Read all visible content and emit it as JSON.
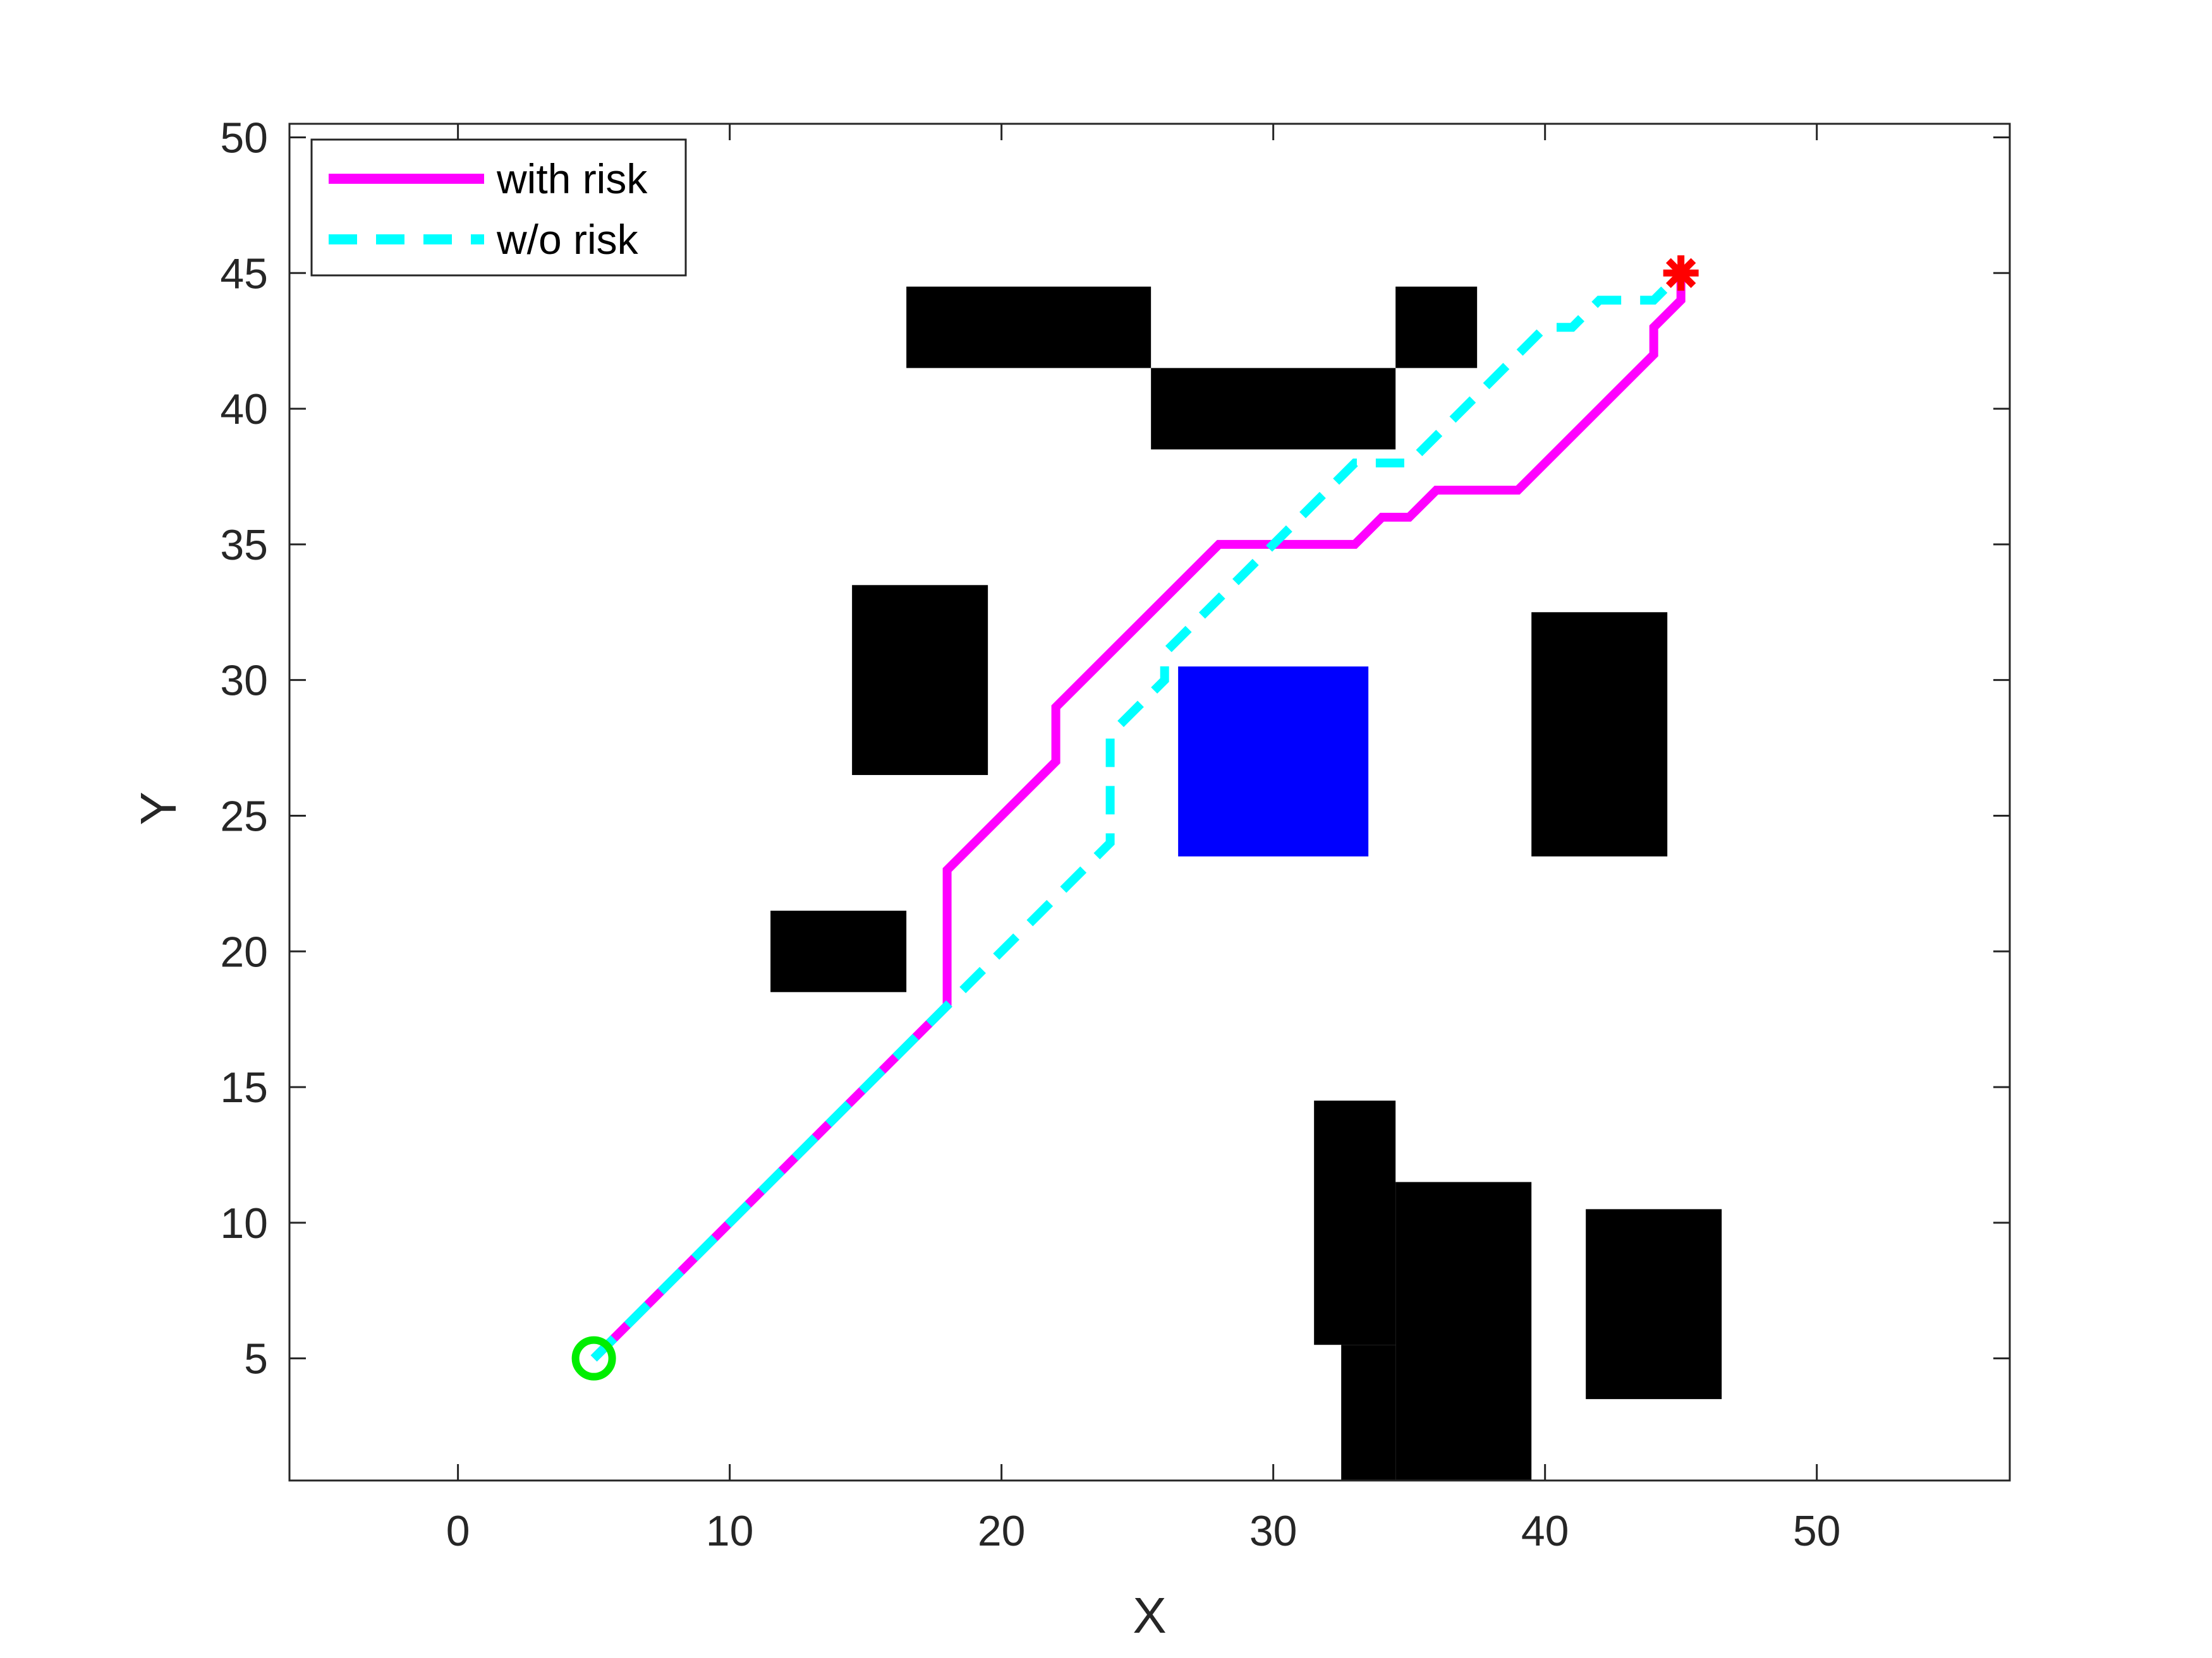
{
  "chart_data": {
    "type": "line",
    "xlabel": "X",
    "ylabel": "Y",
    "xlim": [
      -6.2,
      57.1
    ],
    "ylim": [
      0.5,
      50.5
    ],
    "xticks": [
      0,
      10,
      20,
      30,
      40,
      50
    ],
    "yticks": [
      5,
      10,
      15,
      20,
      25,
      30,
      35,
      40,
      45,
      50
    ],
    "grid": false,
    "legend_position": "top-left",
    "legend": {
      "with_risk": "with risk",
      "wo_risk": "w/o risk"
    },
    "series": [
      {
        "key": "with_risk",
        "name": "with risk",
        "color": "#ff00ff",
        "style": "solid",
        "points": [
          [
            5,
            5
          ],
          [
            18,
            18
          ],
          [
            18,
            23
          ],
          [
            22,
            27
          ],
          [
            22,
            29
          ],
          [
            28,
            35
          ],
          [
            33,
            35
          ],
          [
            34,
            36
          ],
          [
            35,
            36
          ],
          [
            36,
            37
          ],
          [
            39,
            37
          ],
          [
            44,
            42
          ],
          [
            44,
            43
          ],
          [
            45,
            44
          ],
          [
            45,
            45
          ]
        ]
      },
      {
        "key": "wo_risk",
        "name": "w/o risk",
        "color": "#00ffff",
        "style": "dashed",
        "points": [
          [
            5,
            5
          ],
          [
            18,
            18
          ],
          [
            24,
            24
          ],
          [
            24,
            28
          ],
          [
            26,
            30
          ],
          [
            26,
            31
          ],
          [
            33,
            38
          ],
          [
            35,
            38
          ],
          [
            40,
            43
          ],
          [
            41,
            43
          ],
          [
            42,
            44
          ],
          [
            44,
            44
          ],
          [
            45,
            45
          ]
        ]
      }
    ],
    "markers": {
      "start": {
        "x": 5,
        "y": 5,
        "shape": "circle",
        "color": "#00ee00"
      },
      "goal": {
        "x": 45,
        "y": 45,
        "shape": "asterisk",
        "color": "#ff0000"
      }
    },
    "obstacles": [
      {
        "x0": 16.5,
        "x1": 25.5,
        "y0": 41.5,
        "y1": 44.5,
        "color": "#000000"
      },
      {
        "x0": 25.5,
        "x1": 34.5,
        "y0": 38.5,
        "y1": 41.5,
        "color": "#000000"
      },
      {
        "x0": 34.5,
        "x1": 37.5,
        "y0": 41.5,
        "y1": 44.5,
        "color": "#000000"
      },
      {
        "x0": 14.5,
        "x1": 19.5,
        "y0": 26.5,
        "y1": 33.5,
        "color": "#000000"
      },
      {
        "x0": 39.5,
        "x1": 44.5,
        "y0": 23.5,
        "y1": 32.5,
        "color": "#000000"
      },
      {
        "x0": 11.5,
        "x1": 16.5,
        "y0": 18.5,
        "y1": 21.5,
        "color": "#000000"
      },
      {
        "x0": 26.5,
        "x1": 33.5,
        "y0": 23.5,
        "y1": 30.5,
        "color": "#0000ff"
      },
      {
        "x0": 31.5,
        "x1": 34.5,
        "y0": 5.5,
        "y1": 14.5,
        "color": "#000000"
      },
      {
        "x0": 34.5,
        "x1": 39.5,
        "y0": 0.5,
        "y1": 11.5,
        "color": "#000000"
      },
      {
        "x0": 32.5,
        "x1": 34.5,
        "y0": 0.5,
        "y1": 5.5,
        "color": "#000000"
      },
      {
        "x0": 41.5,
        "x1": 46.5,
        "y0": 3.5,
        "y1": 10.5,
        "color": "#000000"
      }
    ]
  }
}
